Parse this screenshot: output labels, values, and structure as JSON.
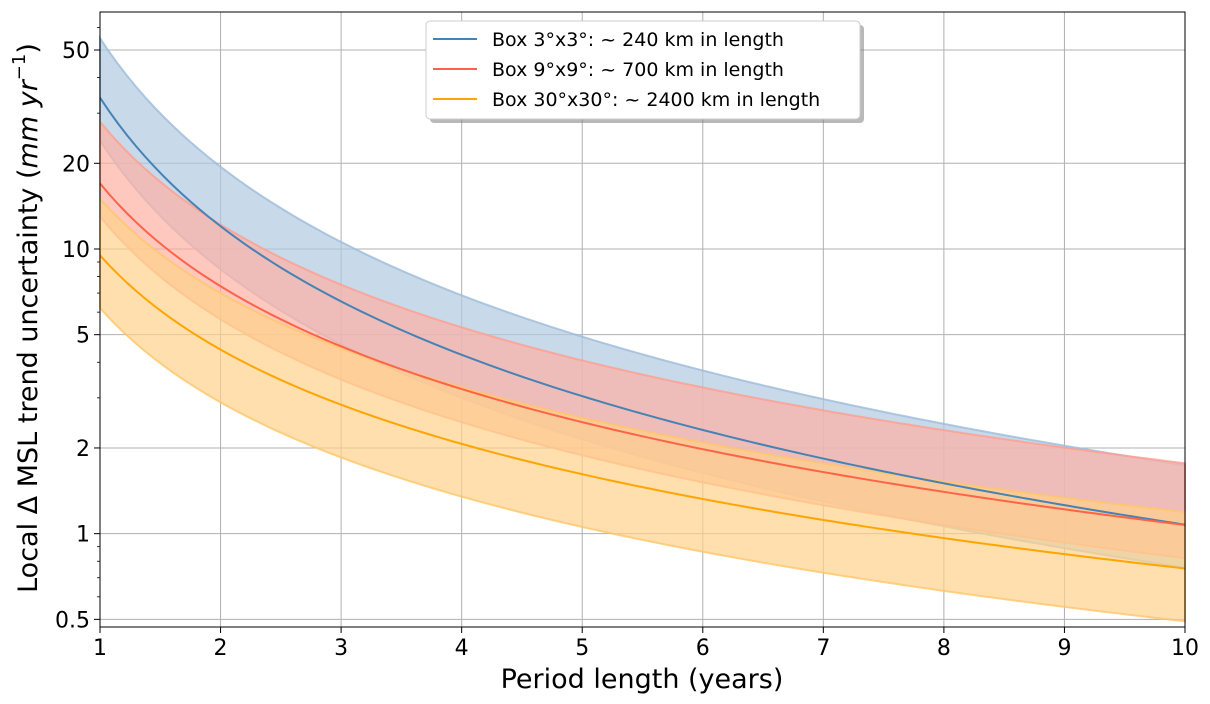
{
  "chart_data": {
    "type": "line",
    "title": "",
    "xlabel": "Period length (years)",
    "ylabel": "Local Δ MSL trend uncertainty (",
    "ylabel_unit": "mm yr",
    "ylabel_exp": "−1",
    "ylabel_close": ")",
    "xlim": [
      1,
      10
    ],
    "ylim": [
      0.47,
      68
    ],
    "yscale": "log",
    "grid": true,
    "legend_position": "top-center",
    "x_ticks": [
      1,
      2,
      3,
      4,
      5,
      6,
      7,
      8,
      9,
      10
    ],
    "y_ticks": [
      0.5,
      1,
      2,
      5,
      10,
      20,
      50
    ],
    "x_tick_labels": [
      "1",
      "2",
      "3",
      "4",
      "5",
      "6",
      "7",
      "8",
      "9",
      "10"
    ],
    "y_tick_labels": [
      "0.5",
      "1",
      "2",
      "5",
      "10",
      "20",
      "50"
    ],
    "series": [
      {
        "name": "Box 3°x3°: ~ 240 km in length",
        "color": "#4682b4",
        "band_color": "#b0c9e0",
        "band_edge": "#9dbcd9",
        "central_at_x1": 34,
        "exponent": 1.5,
        "upper_at_x1": 55,
        "lower_at_x1": 24
      },
      {
        "name": "Box 9°x9°: ~ 700 km in length",
        "color": "#ff6347",
        "band_color": "#ffb1a4",
        "band_edge": "#ff9e8e",
        "central_at_x1": 17,
        "exponent": 1.2,
        "upper_at_x1": 28,
        "lower_at_x1": 13
      },
      {
        "name": "Box 30°x30°: ~ 2400 km in length",
        "color": "#ffa500",
        "band_color": "#ffd28a",
        "band_edge": "#ffc66a",
        "central_at_x1": 9.5,
        "exponent": 1.1,
        "upper_at_x1": 15,
        "lower_at_x1": 6.2
      }
    ]
  }
}
